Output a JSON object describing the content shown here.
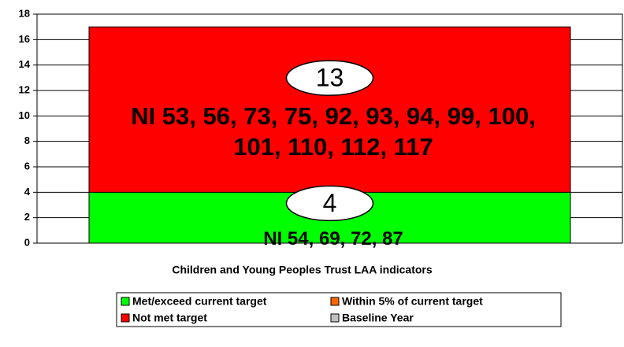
{
  "chart_data": {
    "type": "stacked_bar",
    "categories": [
      "Children and Young Peoples Trust LAA indicators"
    ],
    "series": [
      {
        "name": "Met/exceed current target",
        "color": "#00ff00",
        "values": [
          4
        ]
      },
      {
        "name": "Within 5% of current target",
        "color": "#ff6600",
        "values": [
          0
        ]
      },
      {
        "name": "Not met target",
        "color": "#ff0000",
        "values": [
          13
        ]
      },
      {
        "name": "Baseline Year",
        "color": "#c0c0c0",
        "values": [
          0
        ]
      }
    ],
    "annotations": [
      "NI 54, 69, 72, 87",
      "NI 53, 56, 73, 75, 92, 93, 94, 99, 100, 101, 110, 112, 117"
    ],
    "ylim": [
      0,
      18
    ],
    "yticks": [
      0,
      2,
      4,
      6,
      8,
      10,
      12,
      14,
      16,
      18
    ],
    "grid": true
  }
}
